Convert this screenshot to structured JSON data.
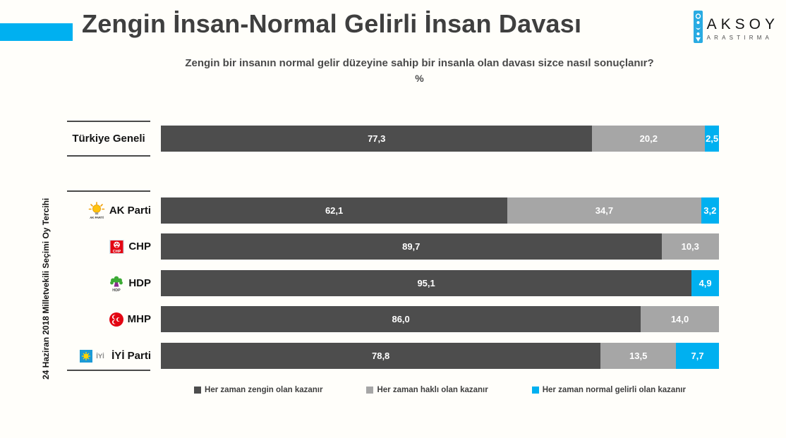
{
  "header": {
    "title": "Zengin İnsan-Normal Gelirli İnsan Davası",
    "subtitle": "Zengin bir insanın normal gelir düzeyine sahip bir insanla olan davası sizce nasıl sonuçlanır?",
    "unit_label": "%"
  },
  "logo": {
    "name": "AKSOY",
    "tagline": "ARASTIRMA"
  },
  "axis_note": "24 Haziran 2018 Milletvekili Seçimi Oy Tercihi",
  "colors": {
    "accent_blue": "#00b0f0",
    "dark_gray": "#4d4d4d",
    "light_gray": "#a6a6a6",
    "title_text": "#3f3f3f"
  },
  "chart_data": {
    "type": "bar",
    "orientation": "horizontal",
    "stacked": true,
    "unit": "%",
    "xlim": [
      0,
      100
    ],
    "grid": false,
    "legend_position": "bottom",
    "decimal_separator": ",",
    "categories": [
      "Türkiye Geneli",
      "AK Parti",
      "CHP",
      "HDP",
      "MHP",
      "İYİ Parti"
    ],
    "category_icons": [
      "",
      "akparti-logo",
      "chp-logo",
      "hdp-logo",
      "mhp-logo",
      "iyiparti-logo"
    ],
    "series": [
      {
        "name": "Her zaman zengin olan kazanır",
        "color": "#4d4d4d",
        "values": [
          77.3,
          62.1,
          89.7,
          95.1,
          86.0,
          78.8
        ]
      },
      {
        "name": "Her zaman haklı olan kazanır",
        "color": "#a6a6a6",
        "values": [
          20.2,
          34.7,
          10.3,
          0,
          14.0,
          13.5
        ]
      },
      {
        "name": "Her zaman normal gelirli olan kazanır",
        "color": "#00b0f0",
        "values": [
          2.5,
          3.2,
          0,
          4.9,
          0,
          7.7
        ]
      }
    ]
  }
}
